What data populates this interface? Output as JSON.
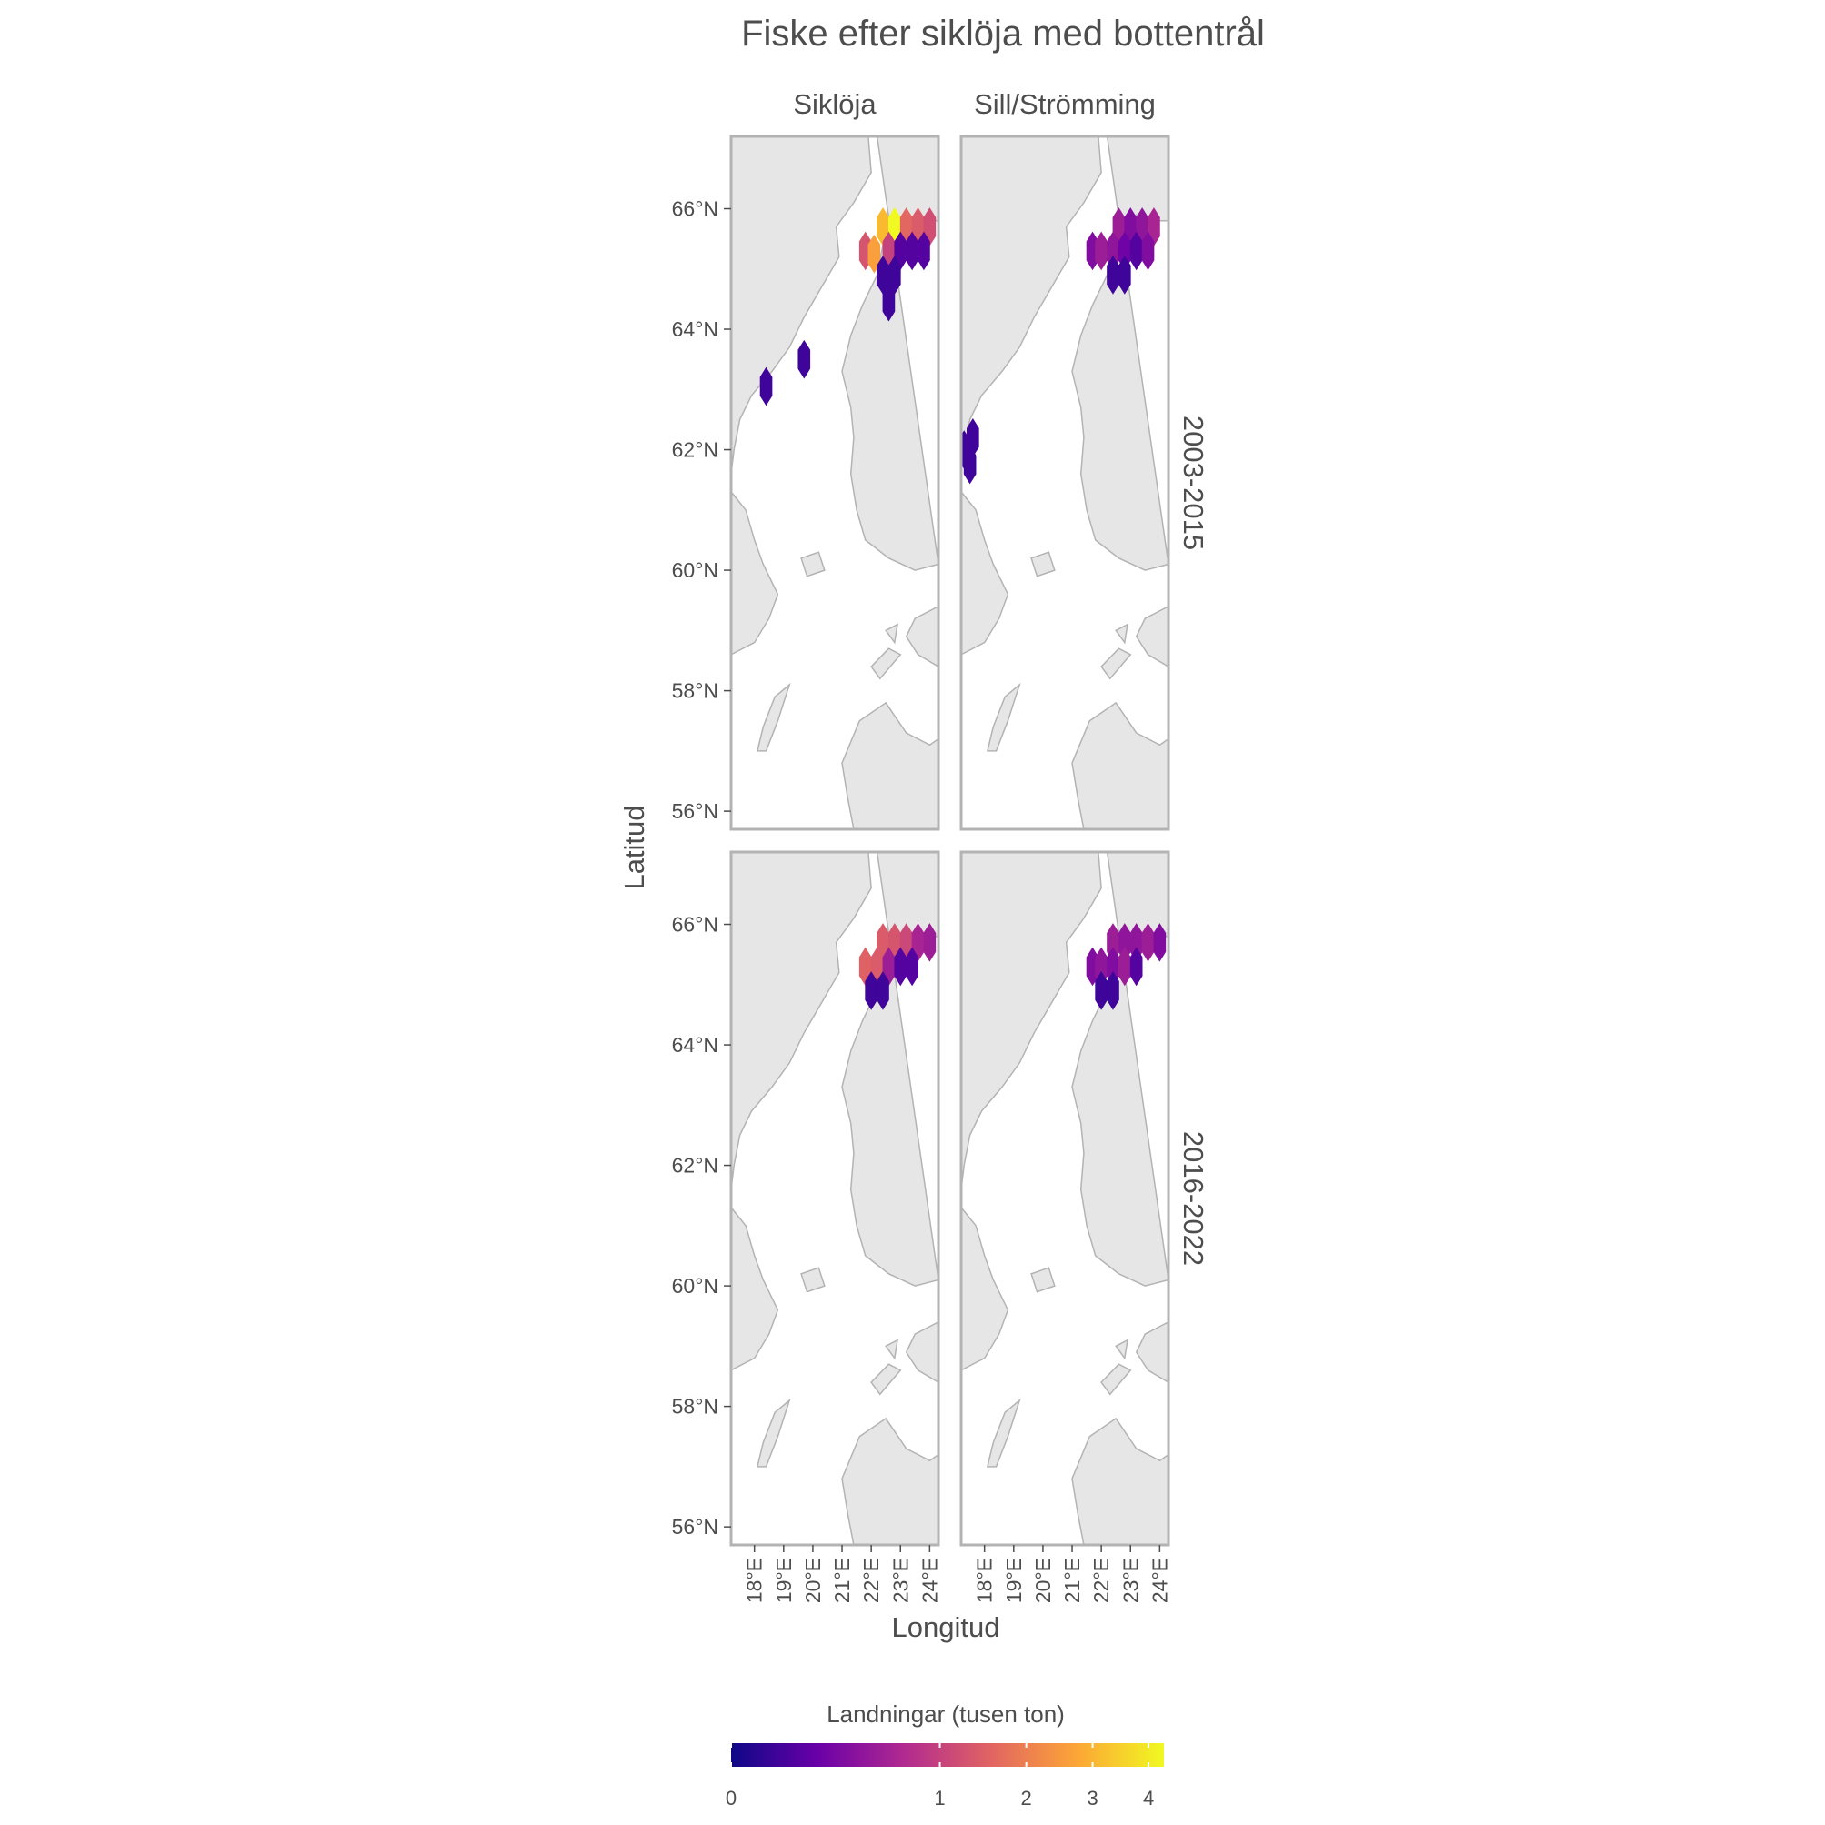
{
  "chart_data": {
    "type": "heatmap",
    "title": "Fiske efter siklöja med bottentrål",
    "xlabel": "Longitud",
    "ylabel": "Latitud",
    "facet_columns": [
      "Siklöja",
      "Sill/Strömming"
    ],
    "facet_rows": [
      "2003-2015",
      "2016-2022"
    ],
    "x_ticks": [
      "18°E",
      "19°E",
      "20°E",
      "21°E",
      "22°E",
      "23°E",
      "24°E"
    ],
    "y_ticks": [
      "56°N",
      "58°N",
      "60°N",
      "62°N",
      "64°N",
      "66°N"
    ],
    "xlim": [
      17.2,
      24.3
    ],
    "ylim": [
      55.7,
      67.2
    ],
    "legend": {
      "title": "Landningar (tusen ton)",
      "ticks": [
        "0",
        "1",
        "2",
        "3",
        "4"
      ],
      "range": [
        0,
        4.3
      ],
      "position": "bottom",
      "colors": [
        "#0d0887",
        "#6a00a8",
        "#b12a90",
        "#e16462",
        "#fca636",
        "#f0f921"
      ]
    },
    "panels": [
      {
        "column": "Siklöja",
        "row": "2003-2015",
        "cells": [
          {
            "lon": 22.4,
            "lat": 65.7,
            "value": 3.1
          },
          {
            "lon": 22.8,
            "lat": 65.7,
            "value": 4.3
          },
          {
            "lon": 23.2,
            "lat": 65.7,
            "value": 1.6
          },
          {
            "lon": 23.6,
            "lat": 65.7,
            "value": 1.4
          },
          {
            "lon": 24.0,
            "lat": 65.7,
            "value": 1.2
          },
          {
            "lon": 21.8,
            "lat": 65.3,
            "value": 1.3
          },
          {
            "lon": 22.1,
            "lat": 65.25,
            "value": 2.6
          },
          {
            "lon": 22.6,
            "lat": 65.3,
            "value": 1.0
          },
          {
            "lon": 23.0,
            "lat": 65.3,
            "value": 0.1
          },
          {
            "lon": 23.4,
            "lat": 65.3,
            "value": 0.1
          },
          {
            "lon": 23.8,
            "lat": 65.3,
            "value": 0.1
          },
          {
            "lon": 22.4,
            "lat": 64.9,
            "value": 0.05
          },
          {
            "lon": 22.8,
            "lat": 64.9,
            "value": 0.05
          },
          {
            "lon": 22.6,
            "lat": 64.45,
            "value": 0.05
          },
          {
            "lon": 19.7,
            "lat": 63.5,
            "value": 0.05
          },
          {
            "lon": 18.4,
            "lat": 63.05,
            "value": 0.05
          }
        ]
      },
      {
        "column": "Sill/Strömming",
        "row": "2003-2015",
        "cells": [
          {
            "lon": 22.6,
            "lat": 65.7,
            "value": 0.5
          },
          {
            "lon": 23.0,
            "lat": 65.7,
            "value": 0.3
          },
          {
            "lon": 23.4,
            "lat": 65.7,
            "value": 0.4
          },
          {
            "lon": 23.8,
            "lat": 65.7,
            "value": 0.6
          },
          {
            "lon": 21.7,
            "lat": 65.3,
            "value": 0.3
          },
          {
            "lon": 22.0,
            "lat": 65.3,
            "value": 0.5
          },
          {
            "lon": 22.4,
            "lat": 65.3,
            "value": 0.4
          },
          {
            "lon": 22.8,
            "lat": 65.3,
            "value": 0.2
          },
          {
            "lon": 23.2,
            "lat": 65.3,
            "value": 0.1
          },
          {
            "lon": 23.6,
            "lat": 65.3,
            "value": 0.3
          },
          {
            "lon": 22.4,
            "lat": 64.9,
            "value": 0.05
          },
          {
            "lon": 22.8,
            "lat": 64.9,
            "value": 0.05
          },
          {
            "lon": 17.6,
            "lat": 62.2,
            "value": 0.05
          },
          {
            "lon": 17.3,
            "lat": 62.0,
            "value": 0.05
          },
          {
            "lon": 17.5,
            "lat": 61.75,
            "value": 0.05
          }
        ]
      },
      {
        "column": "Siklöja",
        "row": "2016-2022",
        "cells": [
          {
            "lon": 22.4,
            "lat": 65.7,
            "value": 1.4
          },
          {
            "lon": 22.8,
            "lat": 65.7,
            "value": 1.3
          },
          {
            "lon": 23.2,
            "lat": 65.7,
            "value": 1.1
          },
          {
            "lon": 23.6,
            "lat": 65.7,
            "value": 0.6
          },
          {
            "lon": 24.0,
            "lat": 65.7,
            "value": 0.5
          },
          {
            "lon": 21.8,
            "lat": 65.3,
            "value": 1.5
          },
          {
            "lon": 22.2,
            "lat": 65.3,
            "value": 1.4
          },
          {
            "lon": 22.6,
            "lat": 65.3,
            "value": 0.5
          },
          {
            "lon": 23.0,
            "lat": 65.3,
            "value": 0.1
          },
          {
            "lon": 23.4,
            "lat": 65.3,
            "value": 0.1
          },
          {
            "lon": 22.0,
            "lat": 64.9,
            "value": 0.05
          },
          {
            "lon": 22.4,
            "lat": 64.9,
            "value": 0.05
          }
        ]
      },
      {
        "column": "Sill/Strömming",
        "row": "2016-2022",
        "cells": [
          {
            "lon": 22.4,
            "lat": 65.7,
            "value": 0.5
          },
          {
            "lon": 22.8,
            "lat": 65.7,
            "value": 0.4
          },
          {
            "lon": 23.2,
            "lat": 65.7,
            "value": 0.4
          },
          {
            "lon": 23.6,
            "lat": 65.7,
            "value": 0.5
          },
          {
            "lon": 24.0,
            "lat": 65.7,
            "value": 0.3
          },
          {
            "lon": 21.7,
            "lat": 65.3,
            "value": 0.3
          },
          {
            "lon": 22.0,
            "lat": 65.3,
            "value": 0.4
          },
          {
            "lon": 22.4,
            "lat": 65.3,
            "value": 0.3
          },
          {
            "lon": 22.8,
            "lat": 65.3,
            "value": 0.5
          },
          {
            "lon": 23.2,
            "lat": 65.3,
            "value": 0.1
          },
          {
            "lon": 22.0,
            "lat": 64.9,
            "value": 0.05
          },
          {
            "lon": 22.4,
            "lat": 64.9,
            "value": 0.05
          }
        ]
      }
    ]
  }
}
